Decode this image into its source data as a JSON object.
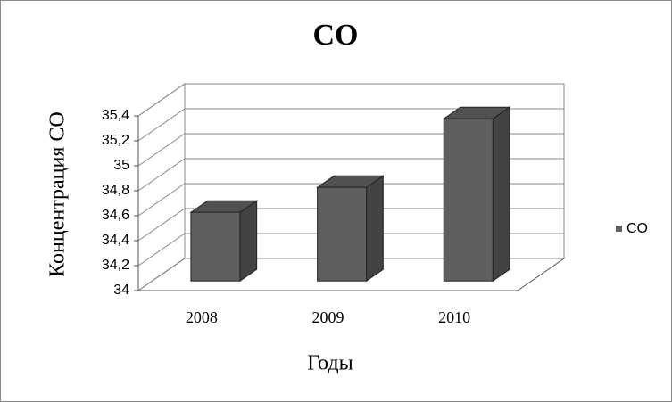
{
  "chart_data": {
    "type": "bar3d",
    "title": "CO",
    "x_label": "Годы",
    "y_label": "Концентрация CO",
    "categories": [
      "2008",
      "2009",
      "2010"
    ],
    "series": [
      {
        "name": "CO",
        "color": "#5f5f5f",
        "values": [
          34.55,
          34.75,
          35.3
        ]
      }
    ],
    "ylim": [
      34,
      35.4
    ],
    "yticks": [
      34,
      {
        "value": 34.2,
        "label": "34,2"
      },
      {
        "value": 34.4,
        "label": "34,4"
      },
      {
        "value": 34.6,
        "label": "34,6"
      },
      {
        "value": 34.8,
        "label": "34,8"
      },
      35,
      {
        "value": 35.2,
        "label": "35,2"
      },
      {
        "value": 35.4,
        "label": "35,4"
      }
    ],
    "grid": true,
    "legend": "right"
  }
}
